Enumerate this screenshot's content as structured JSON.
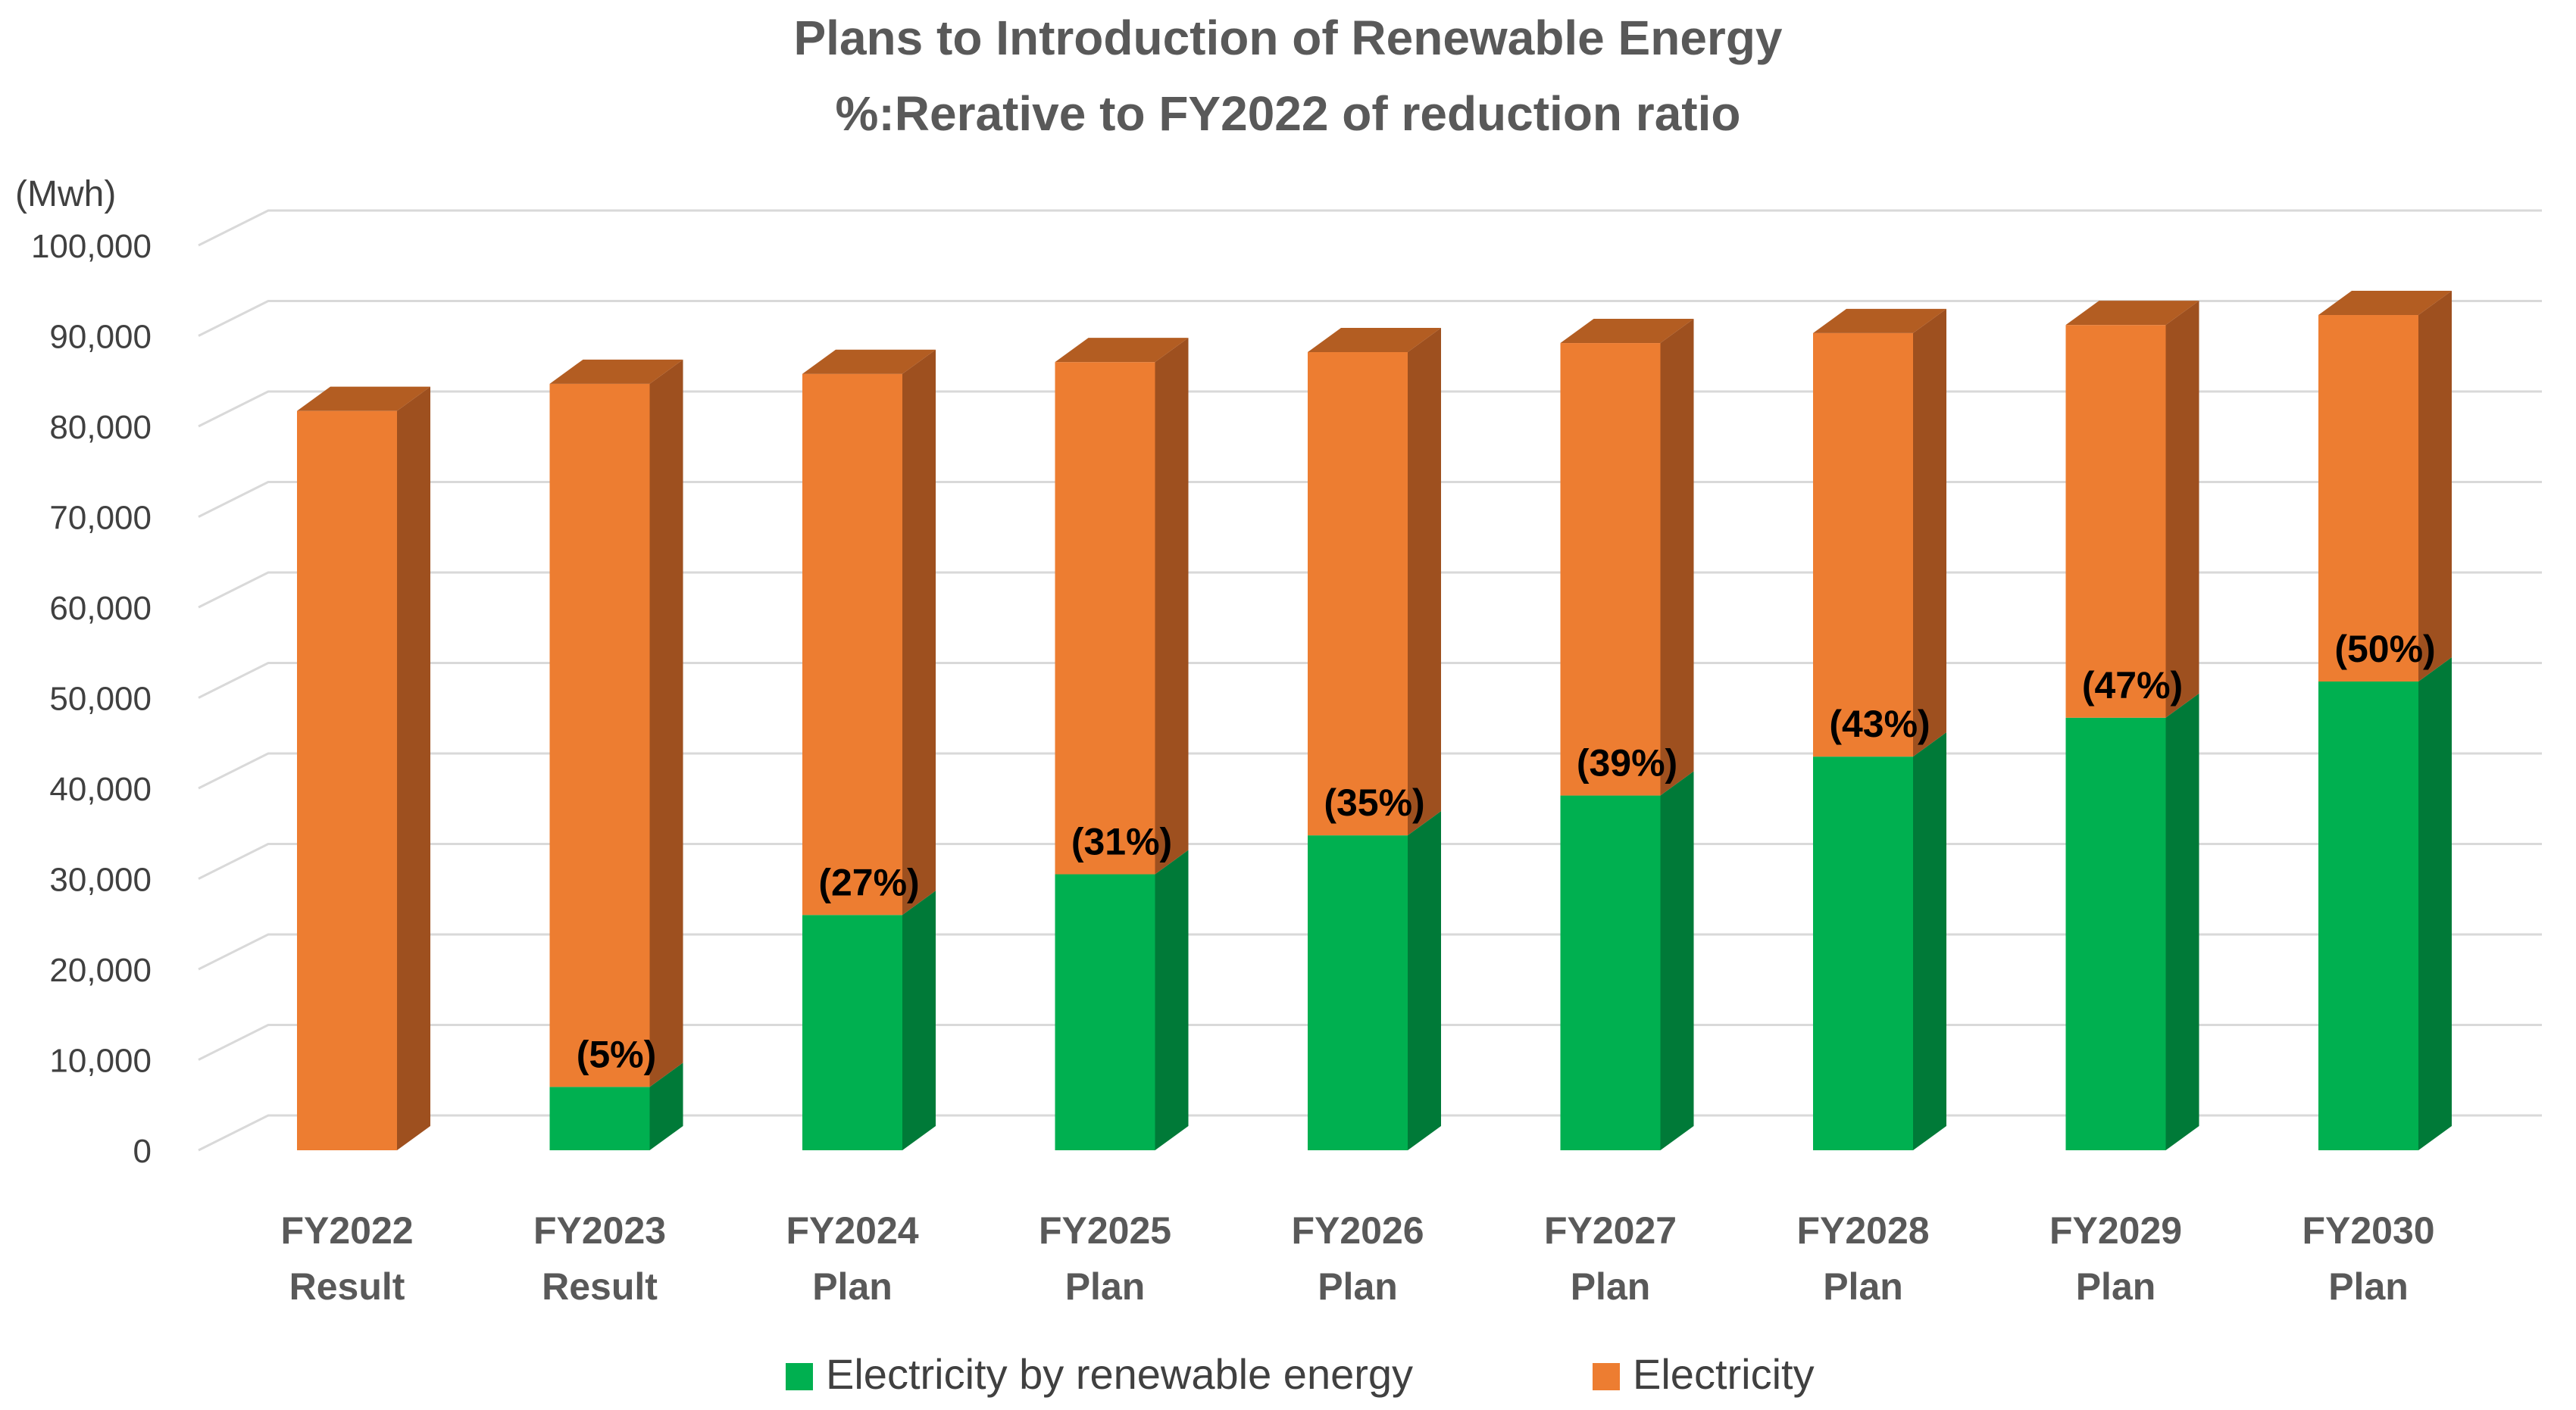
{
  "chart_data": {
    "type": "bar",
    "stacked": true,
    "style": "3d-column",
    "title": "Plans to Introduction of Renewable Energy",
    "subtitle": "%:Rerative to FY2022 of reduction ratio",
    "ylabel": "(Mwh)",
    "ylim": [
      0,
      100000
    ],
    "ytick_step": 10000,
    "yticks": [
      "0",
      "10,000",
      "20,000",
      "30,000",
      "40,000",
      "50,000",
      "60,000",
      "70,000",
      "80,000",
      "90,000",
      "100,000"
    ],
    "grid": true,
    "legend_position": "bottom",
    "categories": [
      [
        "FY2022",
        "Result"
      ],
      [
        "FY2023",
        "Result"
      ],
      [
        "FY2024",
        "Plan"
      ],
      [
        "FY2025",
        "Plan"
      ],
      [
        "FY2026",
        "Plan"
      ],
      [
        "FY2027",
        "Plan"
      ],
      [
        "FY2028",
        "Plan"
      ],
      [
        "FY2029",
        "Plan"
      ],
      [
        "FY2030",
        "Plan"
      ]
    ],
    "series": [
      {
        "name": "Electricity by renewable energy",
        "color": "#00b050",
        "side_color": "#007a38",
        "top_color": "#00a047",
        "values": [
          0,
          7000,
          26000,
          30500,
          34800,
          39200,
          43500,
          47800,
          51800
        ]
      },
      {
        "name": "Electricity",
        "color": "#ed7d31",
        "side_color": "#9e501f",
        "top_color": "#b35d22",
        "values": [
          81700,
          77700,
          59800,
          56600,
          53400,
          50000,
          46800,
          43400,
          40500
        ]
      }
    ],
    "data_labels": [
      "",
      "(5%)",
      "(27%)",
      "(31%)",
      "(35%)",
      "(39%)",
      "(43%)",
      "(47%)",
      "(50%)"
    ]
  }
}
